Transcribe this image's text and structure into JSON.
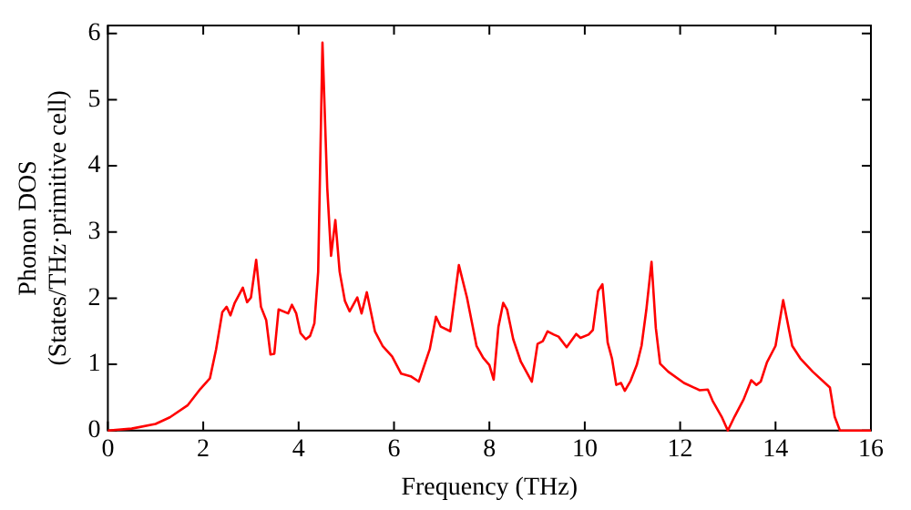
{
  "chart_data": {
    "type": "line",
    "xlabel": "Frequency (THz)",
    "ylabel": "Phonon DOS\n(States/THz·primitive cell)",
    "xlim": [
      0,
      16
    ],
    "ylim": [
      0,
      6.12
    ],
    "xticks": [
      0,
      2,
      4,
      6,
      8,
      10,
      12,
      14,
      16
    ],
    "yticks": [
      0,
      1,
      2,
      3,
      4,
      5,
      6
    ],
    "grid": false,
    "legend": false,
    "marker": "none",
    "line_style": "solid",
    "series": [
      {
        "color": "#ff0000",
        "x": [
          0,
          0.5,
          1.0,
          1.3,
          1.67,
          1.94,
          2.14,
          2.27,
          2.4,
          2.49,
          2.57,
          2.66,
          2.83,
          2.92,
          3.0,
          3.11,
          3.21,
          3.32,
          3.41,
          3.49,
          3.58,
          3.78,
          3.86,
          3.95,
          4.04,
          4.15,
          4.24,
          4.33,
          4.41,
          4.5,
          4.6,
          4.68,
          4.77,
          4.86,
          4.97,
          5.07,
          5.23,
          5.32,
          5.43,
          5.6,
          5.76,
          5.96,
          6.15,
          6.35,
          6.52,
          6.75,
          6.88,
          6.98,
          7.18,
          7.36,
          7.53,
          7.73,
          7.87,
          8.0,
          8.09,
          8.19,
          8.29,
          8.37,
          8.5,
          8.66,
          8.89,
          9.01,
          9.12,
          9.22,
          9.35,
          9.45,
          9.62,
          9.82,
          9.91,
          10.08,
          10.17,
          10.28,
          10.37,
          10.48,
          10.57,
          10.66,
          10.76,
          10.84,
          10.96,
          11.09,
          11.19,
          11.29,
          11.4,
          11.49,
          11.58,
          11.75,
          12.08,
          12.41,
          12.58,
          12.68,
          12.87,
          13.0,
          13.14,
          13.33,
          13.49,
          13.6,
          13.69,
          13.82,
          14.0,
          14.16,
          14.35,
          14.52,
          14.78,
          15.14,
          15.24,
          15.35,
          16.0
        ],
        "values": [
          0,
          0.03,
          0.1,
          0.2,
          0.38,
          0.63,
          0.79,
          1.23,
          1.79,
          1.87,
          1.74,
          1.93,
          2.16,
          1.94,
          2.01,
          2.58,
          1.87,
          1.67,
          1.15,
          1.16,
          1.83,
          1.77,
          1.9,
          1.77,
          1.47,
          1.38,
          1.43,
          1.62,
          2.4,
          5.86,
          3.67,
          2.64,
          3.18,
          2.4,
          1.96,
          1.8,
          2.01,
          1.77,
          2.09,
          1.5,
          1.28,
          1.12,
          0.86,
          0.82,
          0.74,
          1.23,
          1.72,
          1.57,
          1.5,
          2.5,
          2.01,
          1.28,
          1.1,
          0.99,
          0.77,
          1.57,
          1.93,
          1.83,
          1.38,
          1.04,
          0.74,
          1.31,
          1.35,
          1.5,
          1.45,
          1.42,
          1.26,
          1.46,
          1.4,
          1.45,
          1.52,
          2.11,
          2.21,
          1.33,
          1.09,
          0.69,
          0.72,
          0.6,
          0.75,
          0.99,
          1.28,
          1.82,
          2.55,
          1.55,
          1.01,
          0.89,
          0.72,
          0.61,
          0.62,
          0.45,
          0.21,
          0,
          0.21,
          0.47,
          0.76,
          0.69,
          0.74,
          1.03,
          1.28,
          1.97,
          1.28,
          1.09,
          0.89,
          0.65,
          0.21,
          0,
          0
        ]
      }
    ]
  }
}
